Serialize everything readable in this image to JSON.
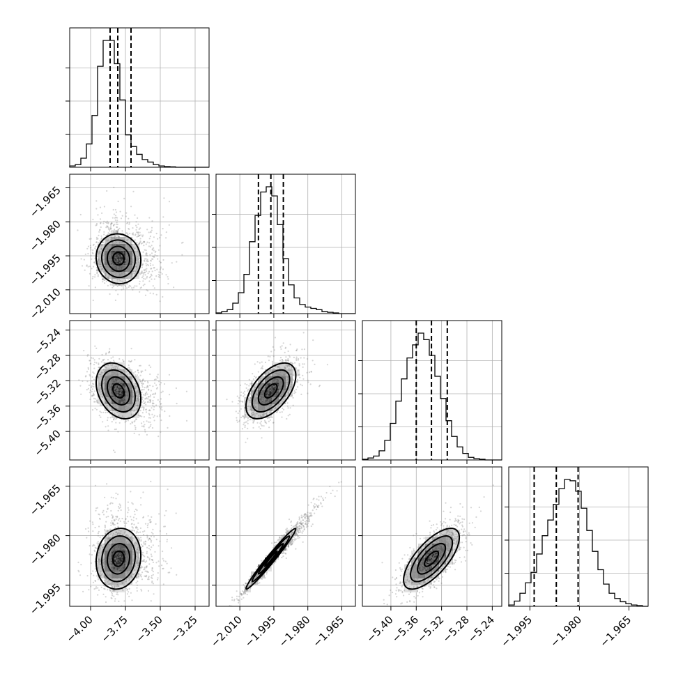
{
  "chart_data": {
    "type": "corner",
    "parameters": [
      {
        "index": 0,
        "range": [
          -4.15,
          -3.15
        ],
        "ticks": [
          -4.0,
          -3.75,
          -3.5,
          -3.25
        ],
        "tick_labels": [
          "−4.00",
          "−3.75",
          "−3.50",
          "−3.25"
        ],
        "quantiles": [
          -3.86,
          -3.805,
          -3.71
        ],
        "histogram": [
          1,
          2,
          7,
          18,
          40,
          78,
          98,
          98,
          80,
          52,
          25,
          16,
          10,
          6,
          4,
          2,
          1,
          0.5,
          0.3,
          0,
          0,
          0,
          0,
          0,
          0
        ]
      },
      {
        "index": 1,
        "range": [
          -2.0205,
          -1.959
        ],
        "ticks": [
          -2.01,
          -1.995,
          -1.98,
          -1.965
        ],
        "tick_labels": [
          "−2.010",
          "−1.995",
          "−1.980",
          "−1.965"
        ],
        "quantiles": [
          -2.0018,
          -1.9963,
          -1.9908
        ],
        "histogram": [
          0.5,
          1.5,
          3,
          8,
          16,
          30,
          55,
          75,
          93,
          97,
          90,
          68,
          42,
          22,
          12,
          7,
          5,
          4,
          3,
          1.5,
          1,
          0.5,
          0,
          0,
          0
        ]
      },
      {
        "index": 2,
        "range": [
          -5.445,
          -5.225
        ],
        "ticks": [
          -5.4,
          -5.36,
          -5.32,
          -5.28,
          -5.24
        ],
        "tick_labels": [
          "−5.40",
          "−5.36",
          "−5.32",
          "−5.28",
          "−5.24"
        ],
        "quantiles": [
          -5.36,
          -5.336,
          -5.311
        ],
        "histogram": [
          0.5,
          1.5,
          3,
          7,
          15,
          28,
          45,
          62,
          78,
          88,
          97,
          92,
          80,
          64,
          47,
          30,
          18,
          10,
          5,
          2,
          1,
          0.5,
          0,
          0,
          0
        ]
      },
      {
        "index": 3,
        "range": [
          -2.0014,
          -1.9592
        ],
        "ticks": [
          -1.995,
          -1.98,
          -1.965
        ],
        "tick_labels": [
          "−1.995",
          "−1.980",
          "−1.965"
        ],
        "quantiles": [
          -1.9937,
          -1.987,
          -1.9804
        ],
        "histogram": [
          1,
          4,
          10,
          18,
          26,
          40,
          54,
          66,
          78,
          90,
          97,
          96,
          88,
          75,
          58,
          42,
          28,
          17,
          10,
          6,
          3.5,
          2,
          1,
          0.5,
          0
        ]
      }
    ],
    "pairs": [
      {
        "row": 1,
        "col": 0,
        "center": [
          -3.8,
          -1.9963
        ],
        "sd": [
          0.08,
          0.0055
        ],
        "rho": -0.05,
        "outlier_skew": [
          0.08,
          0.003
        ]
      },
      {
        "row": 2,
        "col": 0,
        "center": [
          -3.8,
          -5.336
        ],
        "sd": [
          0.08,
          0.022
        ],
        "rho": -0.3,
        "outlier_skew": [
          0.08,
          0
        ]
      },
      {
        "row": 2,
        "col": 1,
        "center": [
          -1.9963,
          -5.336
        ],
        "sd": [
          0.0055,
          0.022
        ],
        "rho": 0.55,
        "outlier_skew": [
          0,
          0
        ]
      },
      {
        "row": 3,
        "col": 0,
        "center": [
          -3.8,
          -1.987
        ],
        "sd": [
          0.08,
          0.0046
        ],
        "rho": 0.1,
        "outlier_skew": [
          0.08,
          0.004
        ]
      },
      {
        "row": 3,
        "col": 1,
        "center": [
          -1.9963,
          -1.987
        ],
        "sd": [
          0.0055,
          0.0046
        ],
        "rho": 0.98,
        "outlier_skew": [
          0.003,
          0.003
        ]
      },
      {
        "row": 3,
        "col": 2,
        "center": [
          -5.336,
          -1.987
        ],
        "sd": [
          0.022,
          0.0046
        ],
        "rho": 0.7,
        "outlier_skew": [
          0,
          0
        ]
      }
    ],
    "contour_levels_sigma": [
      0.5,
      1.0,
      1.5,
      2.0
    ],
    "grid": true,
    "histogram_style": "step",
    "quantile_style": "dashed"
  }
}
